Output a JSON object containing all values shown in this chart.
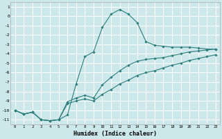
{
  "xlabel": "Humidex (Indice chaleur)",
  "background_color": "#cce8ea",
  "grid_color": "#ffffff",
  "line_color": "#2d7d7d",
  "xlim": [
    -0.5,
    23.5
  ],
  "ylim": [
    -11.5,
    1.5
  ],
  "yticks": [
    1,
    0,
    -1,
    -2,
    -3,
    -4,
    -5,
    -6,
    -7,
    -8,
    -9,
    -10,
    -11
  ],
  "xticks": [
    0,
    1,
    2,
    3,
    4,
    5,
    6,
    7,
    8,
    9,
    10,
    11,
    12,
    13,
    14,
    15,
    16,
    17,
    18,
    19,
    20,
    21,
    22,
    23
  ],
  "series": [
    {
      "x": [
        0,
        1,
        2,
        3,
        4,
        5,
        6,
        7,
        8,
        9,
        10,
        11,
        12,
        13,
        14,
        15,
        16,
        17,
        18,
        19,
        20,
        21,
        22,
        23
      ],
      "y": [
        -10,
        -10.4,
        -10.2,
        -11.0,
        -11.1,
        -11.0,
        -10.5,
        -7.2,
        -4.3,
        -3.8,
        -1.2,
        0.2,
        0.7,
        0.2,
        -0.7,
        -2.7,
        -3.1,
        -3.2,
        -3.3,
        -3.3,
        -3.3,
        -3.4,
        -3.5,
        -3.5
      ]
    },
    {
      "x": [
        0,
        1,
        2,
        3,
        4,
        5,
        6,
        7,
        8,
        9,
        10,
        11,
        12,
        13,
        14,
        15,
        16,
        17,
        18,
        19,
        20,
        21,
        22,
        23
      ],
      "y": [
        -10,
        -10.4,
        -10.2,
        -11.0,
        -11.1,
        -11.0,
        -9.1,
        -8.7,
        -8.4,
        -8.7,
        -7.3,
        -6.5,
        -5.8,
        -5.2,
        -4.8,
        -4.6,
        -4.5,
        -4.4,
        -4.2,
        -4.0,
        -3.8,
        -3.7,
        -3.6,
        -3.5
      ]
    },
    {
      "x": [
        0,
        1,
        2,
        3,
        4,
        5,
        6,
        7,
        8,
        9,
        10,
        11,
        12,
        13,
        14,
        15,
        16,
        17,
        18,
        19,
        20,
        21,
        22,
        23
      ],
      "y": [
        -10,
        -10.4,
        -10.2,
        -11.0,
        -11.1,
        -11.0,
        -9.3,
        -9.0,
        -8.8,
        -9.0,
        -8.3,
        -7.8,
        -7.2,
        -6.8,
        -6.3,
        -6.0,
        -5.8,
        -5.5,
        -5.2,
        -5.0,
        -4.7,
        -4.5,
        -4.3,
        -4.1
      ]
    }
  ]
}
